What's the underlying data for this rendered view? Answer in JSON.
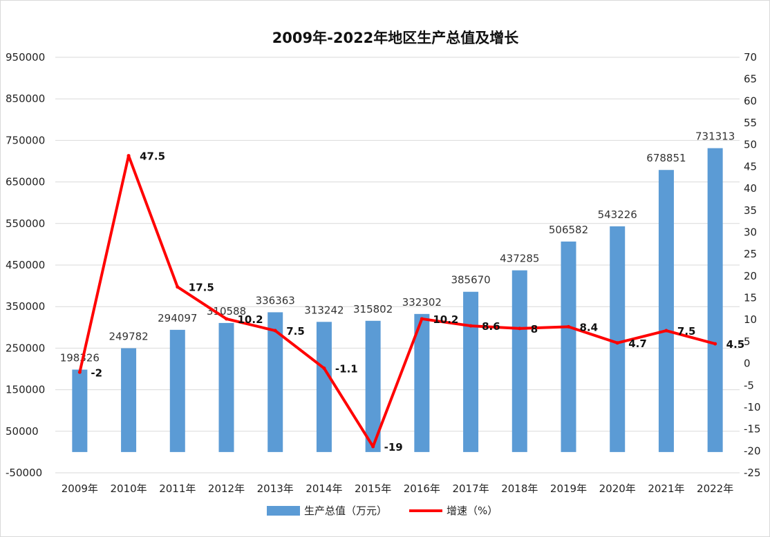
{
  "chart_data": {
    "type": "bar",
    "title": "2009年-2022年地区生产总值及增长",
    "categories": [
      "2009年",
      "2010年",
      "2011年",
      "2012年",
      "2013年",
      "2014年",
      "2015年",
      "2016年",
      "2017年",
      "2018年",
      "2019年",
      "2020年",
      "2021年",
      "2022年"
    ],
    "series": [
      {
        "name": "生产总值（万元）",
        "type": "bar",
        "axis": "left",
        "color": "#5b9bd5",
        "values": [
          198326,
          249782,
          294097,
          310588,
          336363,
          313242,
          315802,
          332302,
          385670,
          437285,
          506582,
          543226,
          678851,
          731313
        ],
        "labels": [
          "198326",
          "249782",
          "294097",
          "310588",
          "336363",
          "313242",
          "315802",
          "332302",
          "385670",
          "437285",
          "506582",
          "543226",
          "678851",
          "731313"
        ]
      },
      {
        "name": "增速（%）",
        "type": "line",
        "axis": "right",
        "color": "#ff0000",
        "values": [
          -2,
          47.5,
          17.5,
          10.2,
          7.5,
          -1.1,
          -19,
          10.2,
          8.6,
          8,
          8.4,
          4.7,
          7.5,
          4.5
        ],
        "labels": [
          "-2",
          "47.5",
          "17.5",
          "10.2",
          "7.5",
          "-1.1",
          "-19",
          "10.2",
          "8.6",
          "8",
          "8.4",
          "4.7",
          "7.5",
          "4.5"
        ]
      }
    ],
    "y_left": {
      "min": -50000,
      "max": 950000,
      "ticks": [
        -50000,
        50000,
        150000,
        250000,
        350000,
        450000,
        550000,
        650000,
        750000,
        850000,
        950000
      ],
      "tick_labels": [
        "-50000",
        "50000",
        "150000",
        "250000",
        "350000",
        "450000",
        "550000",
        "650000",
        "750000",
        "850000",
        "950000"
      ]
    },
    "y_right": {
      "min": -25,
      "max": 70,
      "ticks": [
        -25,
        -20,
        -15,
        -10,
        -5,
        0,
        5,
        10,
        15,
        20,
        25,
        30,
        35,
        40,
        45,
        50,
        55,
        60,
        65,
        70
      ],
      "tick_labels": [
        "-25",
        "-20",
        "-15",
        "-10",
        "-5",
        "0",
        "5",
        "10",
        "15",
        "20",
        "25",
        "30",
        "35",
        "40",
        "45",
        "50",
        "55",
        "60",
        "65",
        "70"
      ]
    },
    "grid": true,
    "legend": "bottom"
  }
}
